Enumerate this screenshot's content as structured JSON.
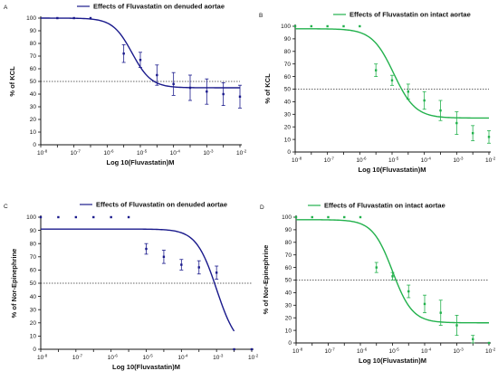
{
  "chart_data": [
    {
      "type": "scatter",
      "panel": "A",
      "title": "Effects of Fluvastatin on denuded aortae",
      "xlabel": "Log 10(Fluvastatin)M",
      "ylabel": "% of KCL",
      "color": "#1a1a8c",
      "xlim": [
        -8,
        -2
      ],
      "ylim": [
        0,
        100
      ],
      "xticks": [
        -8,
        -7.5,
        -7,
        -6.5,
        -6,
        -5.5,
        -5,
        -4.5,
        -4,
        -3.5,
        -3,
        -2.5,
        -2
      ],
      "xtick_labels": [
        "10-8",
        "",
        "10-7",
        "",
        "10-6",
        "",
        "10-5",
        "",
        "10-4",
        "",
        "10-3",
        "",
        "10-2"
      ],
      "yticks": [
        0,
        10,
        20,
        30,
        40,
        50,
        60,
        70,
        80,
        90,
        100
      ],
      "reference_line": 50,
      "points": [
        {
          "x": -7.5,
          "y": 100,
          "err": 0
        },
        {
          "x": -7.0,
          "y": 100,
          "err": 0
        },
        {
          "x": -6.5,
          "y": 100,
          "err": 0
        },
        {
          "x": -5.5,
          "y": 72,
          "err": 7
        },
        {
          "x": -5.0,
          "y": 67,
          "err": 6
        },
        {
          "x": -4.5,
          "y": 55,
          "err": 8
        },
        {
          "x": -4.0,
          "y": 48,
          "err": 9
        },
        {
          "x": -3.5,
          "y": 45,
          "err": 10
        },
        {
          "x": -3.0,
          "y": 42,
          "err": 10
        },
        {
          "x": -2.5,
          "y": 40,
          "err": 9
        },
        {
          "x": -2.0,
          "y": 38,
          "err": 9
        }
      ],
      "curve": {
        "top": 100,
        "bottom": 45,
        "logEC50": -5.25,
        "hill": 1.5,
        "x_start": -8,
        "x_end": -2
      }
    },
    {
      "type": "scatter",
      "panel": "B",
      "title": "Effects of Fluvastatin on intact aortae",
      "xlabel": "Log 10(Fluvastatin)M",
      "ylabel": "% of KCL",
      "color": "#22b14c",
      "xlim": [
        -8,
        -2
      ],
      "ylim": [
        0,
        100
      ],
      "xticks": [
        -8,
        -7.5,
        -7,
        -6.5,
        -6,
        -5.5,
        -5,
        -4.5,
        -4,
        -3.5,
        -3,
        -2.5,
        -2
      ],
      "xtick_labels": [
        "10-8",
        "",
        "10-7",
        "",
        "10-6",
        "",
        "10-5",
        "",
        "10-4",
        "",
        "10-3",
        "",
        "10-2"
      ],
      "yticks": [
        0,
        10,
        20,
        30,
        40,
        50,
        60,
        70,
        80,
        90,
        100
      ],
      "reference_line": 50,
      "points": [
        {
          "x": -8.0,
          "y": 100,
          "err": 0
        },
        {
          "x": -7.5,
          "y": 100,
          "err": 0
        },
        {
          "x": -7.0,
          "y": 100,
          "err": 0
        },
        {
          "x": -6.5,
          "y": 100,
          "err": 0
        },
        {
          "x": -6.0,
          "y": 100,
          "err": 0
        },
        {
          "x": -5.5,
          "y": 65,
          "err": 5
        },
        {
          "x": -5.0,
          "y": 57,
          "err": 4
        },
        {
          "x": -4.5,
          "y": 48,
          "err": 6
        },
        {
          "x": -4.0,
          "y": 41,
          "err": 7
        },
        {
          "x": -3.5,
          "y": 33,
          "err": 8
        },
        {
          "x": -3.0,
          "y": 23,
          "err": 9
        },
        {
          "x": -2.5,
          "y": 15,
          "err": 6
        },
        {
          "x": -2.0,
          "y": 12,
          "err": 5
        }
      ],
      "curve": {
        "top": 98,
        "bottom": 27,
        "logEC50": -4.95,
        "hill": 1.3,
        "x_start": -8,
        "x_end": -2
      }
    },
    {
      "type": "scatter",
      "panel": "C",
      "title": "Effects of Fluvastatin on denuded aortae",
      "xlabel": "Log 10(Fluvastatin)M",
      "ylabel": "% of Nor-Epinephrine",
      "color": "#1a1a8c",
      "xlim": [
        -8,
        -2
      ],
      "ylim": [
        0,
        100
      ],
      "xticks": [
        -8,
        -7.5,
        -7,
        -6.5,
        -6,
        -5.5,
        -5,
        -4.5,
        -4,
        -3.5,
        -3,
        -2.5,
        -2
      ],
      "xtick_labels": [
        "10-8",
        "",
        "10-7",
        "",
        "10-6",
        "",
        "10-5",
        "",
        "10-4",
        "",
        "10-3",
        "",
        "10-2"
      ],
      "yticks": [
        0,
        10,
        20,
        30,
        40,
        50,
        60,
        70,
        80,
        90,
        100
      ],
      "reference_line": 50,
      "points": [
        {
          "x": -8.0,
          "y": 100,
          "err": 0
        },
        {
          "x": -7.5,
          "y": 100,
          "err": 0
        },
        {
          "x": -7.0,
          "y": 100,
          "err": 0
        },
        {
          "x": -6.5,
          "y": 100,
          "err": 0
        },
        {
          "x": -6.0,
          "y": 100,
          "err": 0
        },
        {
          "x": -5.5,
          "y": 100,
          "err": 0
        },
        {
          "x": -5.0,
          "y": 76,
          "err": 4
        },
        {
          "x": -4.5,
          "y": 70,
          "err": 5
        },
        {
          "x": -4.0,
          "y": 64,
          "err": 4
        },
        {
          "x": -3.5,
          "y": 62,
          "err": 5
        },
        {
          "x": -3.0,
          "y": 58,
          "err": 5
        },
        {
          "x": -2.5,
          "y": 0,
          "err": 0
        },
        {
          "x": -2.0,
          "y": 0,
          "err": 0
        }
      ],
      "curve": {
        "top": 91,
        "bottom": 0,
        "logEC50": -3.0,
        "hill": 1.5,
        "x_start": -8,
        "x_end": -2.5
      }
    },
    {
      "type": "scatter",
      "panel": "D",
      "title": "Effects of Fluvastatin on intact aortae",
      "xlabel": "Log 10(Fluvastatin)M",
      "ylabel": "% of Nor-Epinephrine",
      "color": "#22b14c",
      "xlim": [
        -8,
        -2
      ],
      "ylim": [
        0,
        100
      ],
      "xticks": [
        -8,
        -7.5,
        -7,
        -6.5,
        -6,
        -5.5,
        -5,
        -4.5,
        -4,
        -3.5,
        -3,
        -2.5,
        -2
      ],
      "xtick_labels": [
        "10-8",
        "",
        "10-7",
        "",
        "10-6",
        "",
        "10-5",
        "",
        "10-4",
        "",
        "10-3",
        "",
        "10-2"
      ],
      "yticks": [
        0,
        10,
        20,
        30,
        40,
        50,
        60,
        70,
        80,
        90,
        100
      ],
      "reference_line": 50,
      "points": [
        {
          "x": -8.0,
          "y": 100,
          "err": 0
        },
        {
          "x": -7.5,
          "y": 100,
          "err": 0
        },
        {
          "x": -7.0,
          "y": 100,
          "err": 0
        },
        {
          "x": -6.5,
          "y": 100,
          "err": 0
        },
        {
          "x": -6.0,
          "y": 100,
          "err": 0
        },
        {
          "x": -5.5,
          "y": 60,
          "err": 4
        },
        {
          "x": -5.0,
          "y": 53,
          "err": 3
        },
        {
          "x": -4.5,
          "y": 41,
          "err": 5
        },
        {
          "x": -4.0,
          "y": 31,
          "err": 7
        },
        {
          "x": -3.5,
          "y": 24,
          "err": 10
        },
        {
          "x": -3.0,
          "y": 14,
          "err": 8
        },
        {
          "x": -2.5,
          "y": 3,
          "err": 3
        },
        {
          "x": -2.0,
          "y": 0,
          "err": 0
        }
      ],
      "curve": {
        "top": 98,
        "bottom": 16,
        "logEC50": -5.0,
        "hill": 1.4,
        "x_start": -8,
        "x_end": -2
      }
    }
  ]
}
